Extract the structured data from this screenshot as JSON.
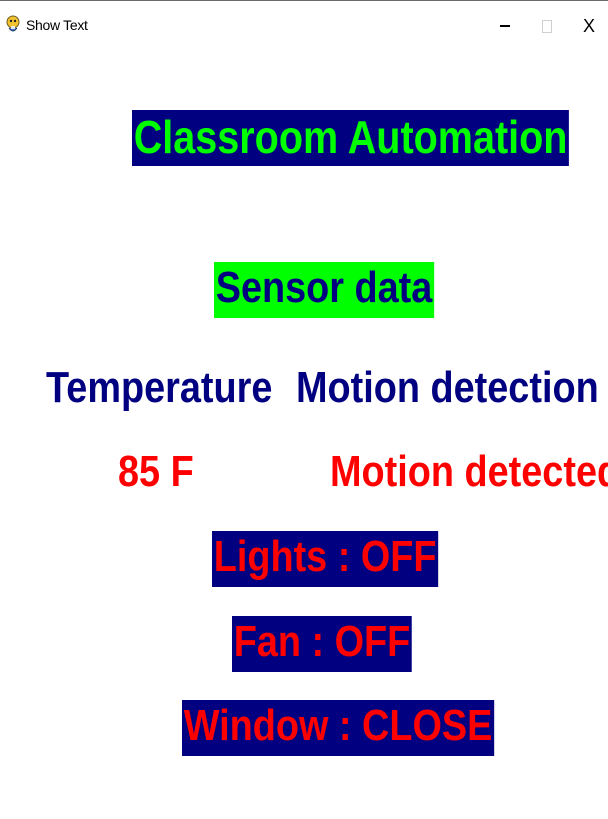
{
  "window": {
    "title": "Show Text",
    "icon": "pygame-snake-icon",
    "controls": {
      "minimize": "minimize-icon",
      "maximize": "maximize-icon",
      "close": "X"
    }
  },
  "app": {
    "heading": "Classroom Automation",
    "section_label": "Sensor data",
    "columns": {
      "temperature_header": "Temperature",
      "motion_header": "Motion detection",
      "temperature_value": "85 F",
      "motion_value": "Motion detected"
    },
    "status": {
      "lights": "Lights : OFF",
      "fan": "Fan : OFF",
      "window": "Window : CLOSE"
    }
  },
  "colors": {
    "navy": "#000080",
    "green": "#00ff00",
    "red": "#ff0000",
    "background": "#ffffff"
  }
}
